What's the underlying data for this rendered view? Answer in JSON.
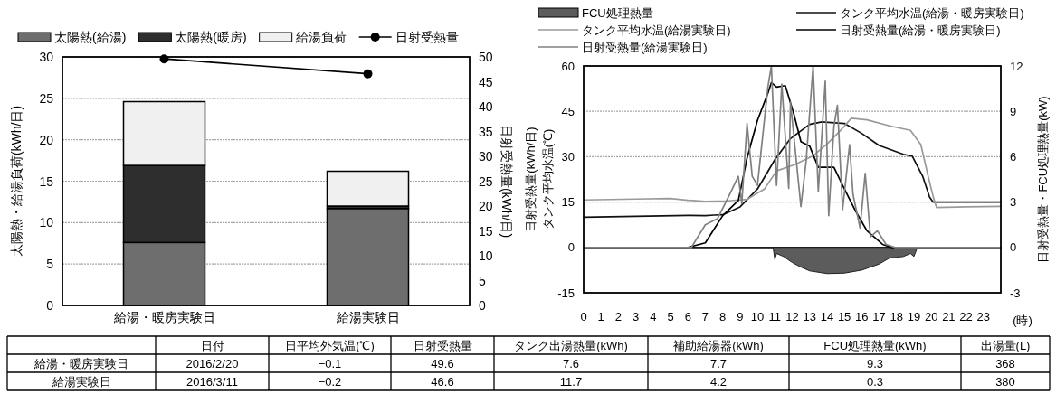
{
  "chart_data": [
    {
      "type": "bar",
      "stacked": true,
      "categories": [
        "給湯・暖房実験日",
        "給湯実験日"
      ],
      "ylabel": "太陽熱・給湯負荷(kWh/日)",
      "y2label": "日射受熱量(kWh/日)",
      "ylim": [
        0,
        30
      ],
      "yticks": [
        0,
        5,
        10,
        15,
        20,
        25,
        30
      ],
      "y2lim": [
        0,
        50
      ],
      "y2ticks": [
        0,
        5,
        10,
        15,
        20,
        25,
        30,
        35,
        40,
        45,
        50
      ],
      "grid": "y",
      "legend": "top",
      "series": [
        {
          "name": "太陽熱(給湯)",
          "color": "#6e6e6e",
          "values": [
            7.6,
            11.7
          ]
        },
        {
          "name": "太陽熱(暖房)",
          "color": "#2e2e2e",
          "values": [
            9.3,
            0.3
          ]
        },
        {
          "name": "給湯負荷",
          "color": "#f0f0f0",
          "values": [
            7.7,
            4.2
          ]
        },
        {
          "name": "日射受熱量",
          "type": "line",
          "axis": "y2",
          "marker": "circle",
          "color": "#000000",
          "values": [
            49.6,
            46.6
          ]
        }
      ]
    },
    {
      "type": "line",
      "xlabel": "(時)",
      "ylabel": "日射受熱量(kWh/日)\nタンク平均水温(℃)",
      "y2label": "日射受熱量・FCU処理熱量(kW)",
      "xlim": [
        0,
        24
      ],
      "xticks": [
        0,
        1,
        2,
        3,
        4,
        5,
        6,
        7,
        8,
        9,
        10,
        11,
        12,
        13,
        14,
        15,
        16,
        17,
        18,
        19,
        20,
        21,
        22,
        23
      ],
      "ylim": [
        -15,
        60
      ],
      "yticks": [
        -15,
        0,
        15,
        30,
        45,
        60
      ],
      "y2lim": [
        -3,
        12
      ],
      "y2ticks": [
        -3,
        0,
        3,
        6,
        9,
        12
      ],
      "grid": "y",
      "legend": "top",
      "series": [
        {
          "name": "FCU処理熱量",
          "type": "area",
          "axis": "y2",
          "color": "#5c5c5c",
          "x": [
            0,
            10.9,
            11,
            11.1,
            11.5,
            12,
            12.5,
            13,
            14,
            15,
            16,
            17,
            17.6,
            18.4,
            18.8,
            19,
            19.2,
            24
          ],
          "values": [
            0,
            0,
            -0.8,
            -0.4,
            -0.6,
            -1.0,
            -1.3,
            -1.55,
            -1.73,
            -1.7,
            -1.5,
            -1.1,
            -0.7,
            -0.6,
            -0.4,
            -0.6,
            0,
            0
          ]
        },
        {
          "name": "タンク平均水温(給湯・暖房実験日)",
          "color": "#111111",
          "x": [
            0,
            3,
            6,
            7,
            7.5,
            8,
            9,
            10,
            11,
            11.9,
            13,
            13.7,
            15,
            16,
            17,
            18.4,
            18.9,
            19.5,
            19.9,
            20.1,
            22,
            24
          ],
          "values": [
            10,
            10.3,
            10.6,
            10.5,
            10.7,
            10.8,
            13.4,
            19.3,
            29,
            36,
            40.7,
            41.5,
            41,
            37.7,
            33.7,
            30.8,
            30.2,
            23.6,
            16.7,
            15,
            15,
            15
          ]
        },
        {
          "name": "タンク平均水温(給湯実験日)",
          "color": "#9a9a9a",
          "x": [
            0,
            3,
            5,
            6,
            7,
            8.3,
            9.4,
            10.4,
            11.1,
            12.1,
            13.2,
            14,
            14.7,
            15.4,
            16.3,
            17.6,
            18.8,
            19.4,
            19.8,
            20.1,
            20.3,
            22,
            24
          ],
          "values": [
            15.7,
            16,
            16.2,
            15.6,
            15.2,
            15.4,
            15.9,
            19.3,
            25.3,
            27.3,
            30.3,
            34.2,
            38.2,
            42.7,
            42.2,
            40.2,
            38.7,
            34,
            24,
            17,
            13.2,
            13.4,
            13.6
          ]
        },
        {
          "name": "日射受熱量(給湯・暖房実験日)",
          "axis": "y2",
          "color": "#000000",
          "x": [
            0,
            6,
            7,
            8,
            8.9,
            9.4,
            10,
            10.6,
            10.8,
            11.1,
            11.6,
            12.1,
            12.5,
            13,
            13.5,
            14.4,
            14.9,
            15.6,
            16.3,
            17.2,
            17.7,
            24
          ],
          "values": [
            0,
            0,
            0.3,
            2.1,
            3.1,
            5.9,
            8.4,
            10.2,
            10.9,
            10.6,
            10.7,
            8.8,
            7,
            6.7,
            5.3,
            5.3,
            4.1,
            2.5,
            1.1,
            0.2,
            0,
            0
          ]
        },
        {
          "name": "日射受熱量(給湯実験日)",
          "axis": "y2",
          "color": "#808080",
          "x": [
            0,
            6.2,
            7,
            7.7,
            8.4,
            8.9,
            9.1,
            9.4,
            9.7,
            10,
            10.6,
            10.8,
            11.1,
            11.4,
            11.8,
            11.9,
            12.5,
            12.8,
            13.2,
            13.5,
            13.9,
            14.1,
            14.4,
            14.6,
            14.9,
            15.3,
            15.5,
            15.9,
            16.2,
            16.5,
            16.9,
            17.4,
            17.9,
            24
          ],
          "values": [
            0,
            0,
            1.5,
            1.9,
            3.5,
            4.7,
            2.9,
            8.2,
            4.7,
            4.1,
            10.6,
            12,
            4.1,
            10.8,
            3.9,
            9.6,
            2.7,
            5.7,
            12,
            3.7,
            11,
            2.1,
            8,
            9.4,
            2.5,
            6.8,
            3.5,
            1.3,
            4.9,
            0.7,
            1.1,
            0.2,
            0,
            0
          ]
        }
      ]
    },
    {
      "type": "other",
      "categories": [
        null,
        "日付",
        "日平均外気温(℃)",
        "日射受熱量",
        "タンク出湯熱量(kWh)",
        "補助給湯器(kWh)",
        "FCU処理熱量(kWh)",
        "出湯量(L)"
      ],
      "y_categories": [
        "給湯・暖房実験日",
        "給湯実験日"
      ],
      "cell_labels": [
        [
          "2016/2/20",
          "−0.1",
          "49.6",
          "7.6",
          "7.7",
          "9.3",
          "368"
        ],
        [
          "2016/3/11",
          "−0.2",
          "46.6",
          "11.7",
          "4.2",
          "0.3",
          "380"
        ]
      ]
    }
  ]
}
